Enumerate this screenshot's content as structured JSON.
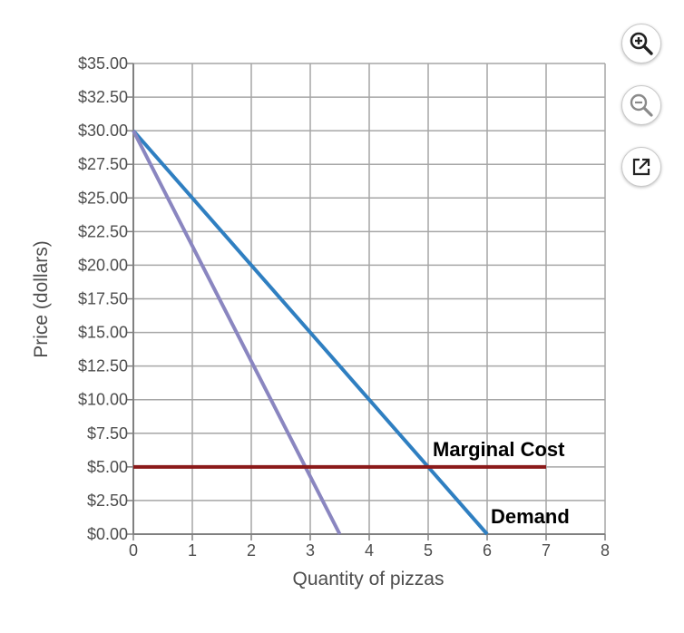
{
  "chart_data": {
    "type": "line",
    "xlabel": "Quantity of pizzas",
    "ylabel": "Price (dollars)",
    "xlim": [
      0,
      8
    ],
    "ylim": [
      0,
      35
    ],
    "x_ticks": [
      0,
      1,
      2,
      3,
      4,
      5,
      6,
      7,
      8
    ],
    "x_tick_labels": [
      "0",
      "1",
      "2",
      "3",
      "4",
      "5",
      "6",
      "7",
      "8"
    ],
    "y_ticks": [
      0,
      2.5,
      5,
      7.5,
      10,
      12.5,
      15,
      17.5,
      20,
      22.5,
      25,
      27.5,
      30,
      32.5,
      35
    ],
    "y_tick_labels": [
      "$0.00",
      "$2.50",
      "$5.00",
      "$7.50",
      "$10.00",
      "$12.50",
      "$15.00",
      "$17.50",
      "$20.00",
      "$22.50",
      "$25.00",
      "$27.50",
      "$30.00",
      "$32.50",
      "$35.00"
    ],
    "grid": true,
    "series": [
      {
        "name": "Demand",
        "color": "#2f7fc1",
        "points": [
          [
            0,
            30
          ],
          [
            6,
            0
          ]
        ]
      },
      {
        "name": "",
        "color": "#8a86c0",
        "points": [
          [
            0,
            30
          ],
          [
            3.5,
            0
          ]
        ]
      },
      {
        "name": "Marginal Cost",
        "color": "#8b1a1a",
        "points": [
          [
            0,
            5
          ],
          [
            7,
            5
          ]
        ]
      }
    ],
    "annotations": [
      {
        "text": "Marginal Cost",
        "series": "Marginal Cost"
      },
      {
        "text": "Demand",
        "series": "Demand"
      }
    ]
  },
  "toolbar": {
    "buttons": [
      {
        "name": "zoom-in-button",
        "icon": "zoom-in-icon"
      },
      {
        "name": "zoom-out-button",
        "icon": "zoom-out-icon"
      },
      {
        "name": "open-external-button",
        "icon": "external-link-icon"
      }
    ]
  }
}
